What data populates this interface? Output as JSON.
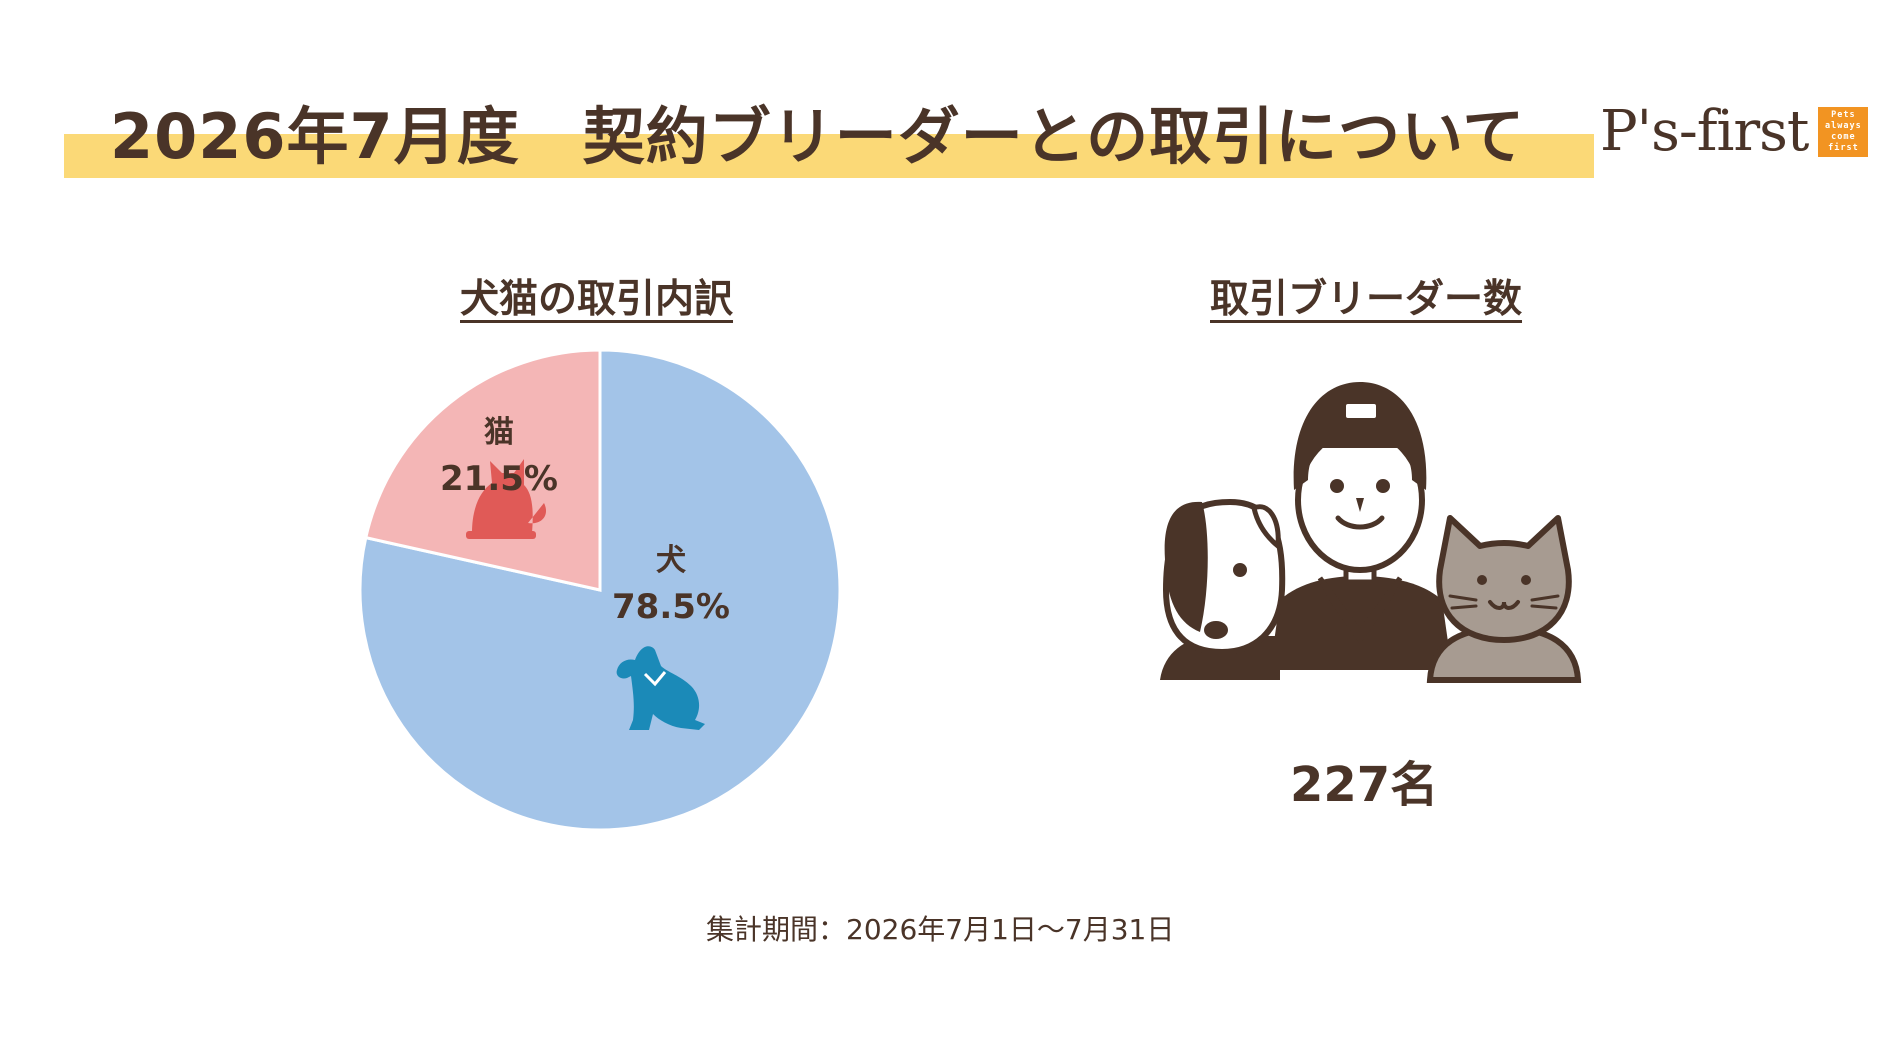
{
  "header": {
    "title": "2026年7月度　契約ブリーダーとの取引について",
    "logo_text": "P's-first",
    "logo_box_lines": [
      "Pets",
      "always",
      "come",
      "first"
    ]
  },
  "left_section": {
    "title": "犬猫の取引内訳"
  },
  "right_section": {
    "title": "取引ブリーダー数",
    "count": "227名"
  },
  "footer": {
    "period": "集計期間：2026年7月1日～7月31日"
  },
  "colors": {
    "accent_band": "#fbd977",
    "text_brown": "#4a3428",
    "dog_slice": "#a3c4e8",
    "cat_slice": "#f4b6b6",
    "dog_icon": "#1b8ab8",
    "cat_icon": "#e05a57",
    "logo_orange": "#f29422"
  },
  "icons": [
    "dog-silhouette-icon",
    "cat-silhouette-icon",
    "breeder-with-pets-illustration"
  ],
  "chart_data": {
    "type": "pie",
    "title": "犬猫の取引内訳",
    "categories": [
      "犬",
      "猫"
    ],
    "values": [
      78.5,
      21.5
    ],
    "value_labels": [
      "78.5%",
      "21.5%"
    ],
    "start": "12 o'clock, clockwise",
    "legend": "none (labels on slices)"
  }
}
